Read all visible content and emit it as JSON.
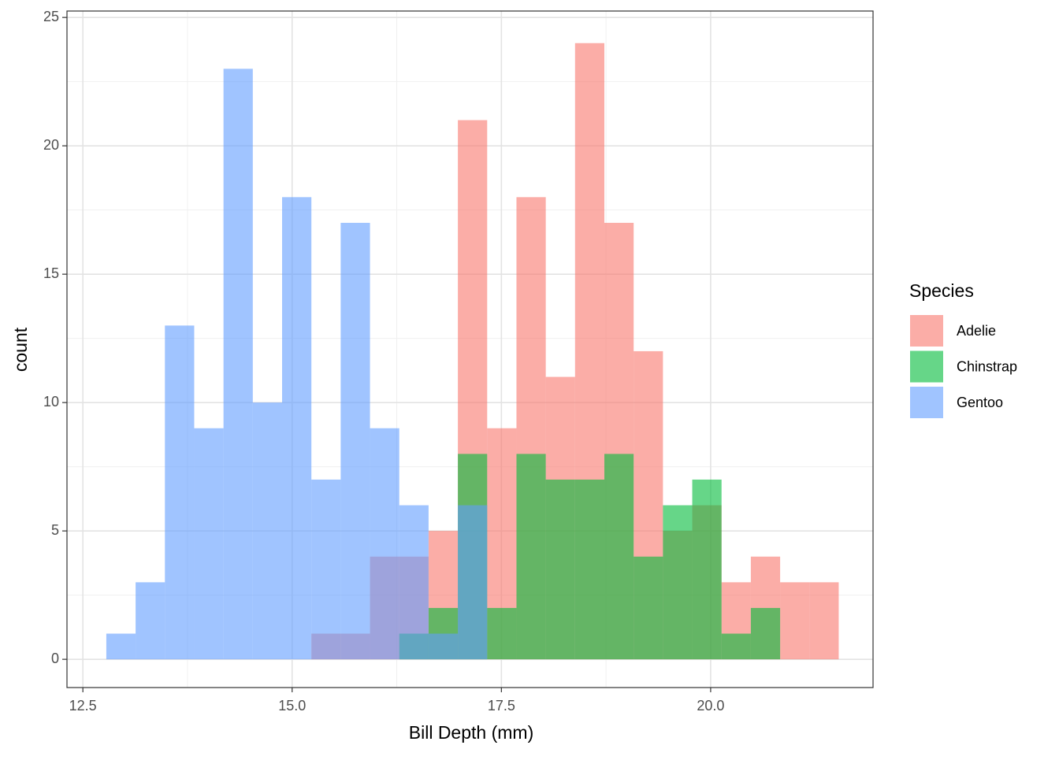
{
  "chart_data": {
    "type": "histogram",
    "xlabel": "Bill Depth (mm)",
    "ylabel": "count",
    "legend_title": "Species",
    "legend": "right",
    "grid": true,
    "alpha": 0.6,
    "bins": [
      12.78,
      13.13,
      13.48,
      13.83,
      14.18,
      14.53,
      14.88,
      15.23,
      15.58,
      15.93,
      16.28,
      16.63,
      16.98,
      17.33,
      17.68,
      18.03,
      18.38,
      18.73,
      19.08,
      19.43,
      19.78,
      20.13,
      20.48,
      20.83,
      21.18,
      21.53
    ],
    "series": [
      {
        "name": "Adelie",
        "color": "#F8766D",
        "values": [
          0,
          0,
          0,
          0,
          0,
          0,
          0,
          1,
          1,
          4,
          4,
          5,
          21,
          9,
          18,
          11,
          24,
          17,
          12,
          5,
          6,
          3,
          4,
          3,
          3
        ]
      },
      {
        "name": "Chinstrap",
        "color": "#00BA38",
        "values": [
          0,
          0,
          0,
          0,
          0,
          0,
          0,
          0,
          0,
          0,
          1,
          2,
          8,
          2,
          8,
          7,
          7,
          8,
          4,
          6,
          7,
          1,
          2,
          0,
          0
        ]
      },
      {
        "name": "Gentoo",
        "color": "#619CFF",
        "values": [
          1,
          3,
          13,
          9,
          23,
          10,
          18,
          7,
          17,
          9,
          6,
          1,
          6,
          0,
          0,
          0,
          0,
          0,
          0,
          0,
          0,
          0,
          0,
          0,
          0
        ]
      }
    ],
    "xlim": [
      12.31,
      21.94
    ],
    "ylim": [
      -1.1,
      25.25
    ],
    "xticks": [
      12.5,
      {
        "value": 15,
        "label": "15.0"
      },
      17.5,
      {
        "value": 20,
        "label": "20.0"
      }
    ],
    "yticks": [
      0,
      5,
      10,
      15,
      20,
      25
    ]
  }
}
